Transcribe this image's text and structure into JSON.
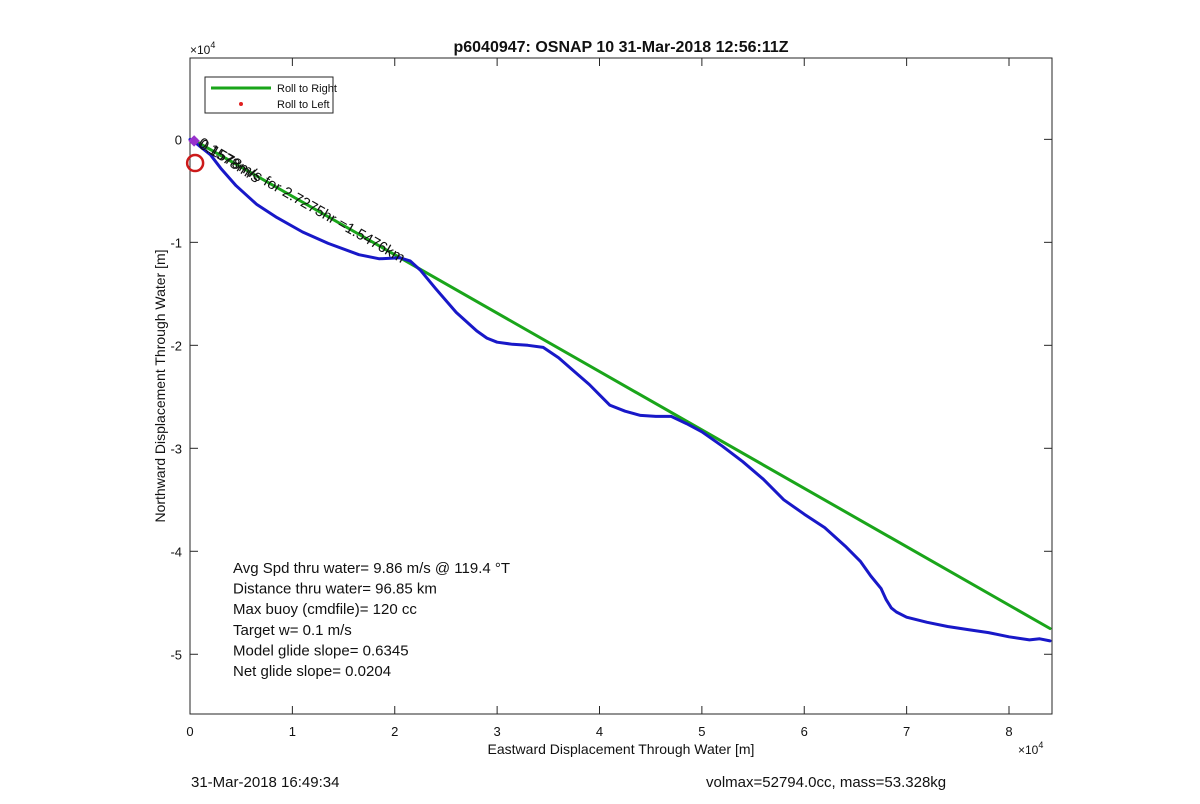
{
  "chart_data": {
    "type": "line",
    "title": "p6040947: OSNAP 10 31-Mar-2018 12:56:11Z",
    "xlabel": "Eastward Displacement Through Water [m]",
    "ylabel": "Northward Displacement Through Water [m]",
    "x_exponent_label": "×10",
    "x_exponent_power": "4",
    "y_exponent_label": "×10",
    "y_exponent_power": "4",
    "xlim": [
      0,
      84200
    ],
    "ylim": [
      -55800,
      7900
    ],
    "xticks": [
      0,
      10000,
      20000,
      30000,
      40000,
      50000,
      60000,
      70000,
      80000
    ],
    "xtick_labels": [
      "0",
      "1",
      "2",
      "3",
      "4",
      "5",
      "6",
      "7",
      "8"
    ],
    "yticks": [
      0,
      -10000,
      -20000,
      -30000,
      -40000,
      -50000
    ],
    "ytick_labels": [
      "0",
      "-1",
      "-2",
      "-3",
      "-4",
      "-5"
    ],
    "grid": false,
    "legend_position": "top-left",
    "legend": [
      {
        "label": "Roll to Right",
        "color": "#1aa51a",
        "kind": "line"
      },
      {
        "label": "Roll to Left",
        "color": "#e02020",
        "kind": "dot"
      }
    ],
    "series": [
      {
        "name": "",
        "color": "#1aa51a",
        "x": [
          600,
          84000
        ],
        "y": [
          -200,
          -47500
        ]
      },
      {
        "name": "",
        "color": "#1818c8",
        "x": [
          0,
          500,
          1000,
          2000,
          3000,
          4500,
          6500,
          8500,
          11000,
          13500,
          16500,
          18500,
          20500,
          21500,
          22500,
          24000,
          26000,
          28000,
          29000,
          30000,
          31500,
          33000,
          34500,
          36000,
          37500,
          39000,
          40000,
          41000,
          42500,
          44000,
          45500,
          47000,
          48500,
          50000,
          52000,
          54000,
          56000,
          58000,
          60000,
          62000,
          64000,
          65500,
          66500,
          67500,
          68000,
          68500,
          69000,
          70000,
          72000,
          74000,
          76000,
          78000,
          80000,
          82000,
          83000,
          84000
        ],
        "y": [
          0,
          -300,
          -700,
          -1500,
          -2800,
          -4500,
          -6300,
          -7600,
          -9000,
          -10100,
          -11200,
          -11600,
          -11500,
          -11800,
          -12700,
          -14500,
          -16800,
          -18600,
          -19300,
          -19700,
          -19900,
          -20000,
          -20200,
          -21200,
          -22500,
          -23800,
          -24800,
          -25800,
          -26400,
          -26800,
          -26900,
          -26900,
          -27600,
          -28400,
          -29800,
          -31300,
          -33000,
          -35000,
          -36400,
          -37700,
          -39500,
          -41000,
          -42400,
          -43600,
          -44700,
          -45500,
          -45900,
          -46400,
          -46900,
          -47300,
          -47600,
          -47900,
          -48300,
          -48600,
          -48500,
          -48700
        ]
      }
    ],
    "markers": [
      {
        "name": "start-circle",
        "x": 500,
        "y": -2300,
        "color": "#cc1a1a"
      },
      {
        "name": "start-diamond",
        "x": 400,
        "y": -150,
        "color": "#9932cc"
      }
    ],
    "annotations": [
      "Avg Spd thru water=  9.86 m/s @ 119.4 °T",
      "Distance thru water= 96.85 km",
      "Max buoy (cmdfile)= 120 cc",
      "Target w= 0.1 m/s",
      "Model glide slope= 0.6345",
      "Net glide slope= 0.0204"
    ],
    "current_label": "0.1578m/s for 2.7275hr =1.5476km",
    "current_label_overlap": "0.1578m/s"
  },
  "footer": {
    "timestamp": "31-Mar-2018 16:49:34",
    "vol_mass": "volmax=52794.0cc, mass=53.328kg"
  }
}
